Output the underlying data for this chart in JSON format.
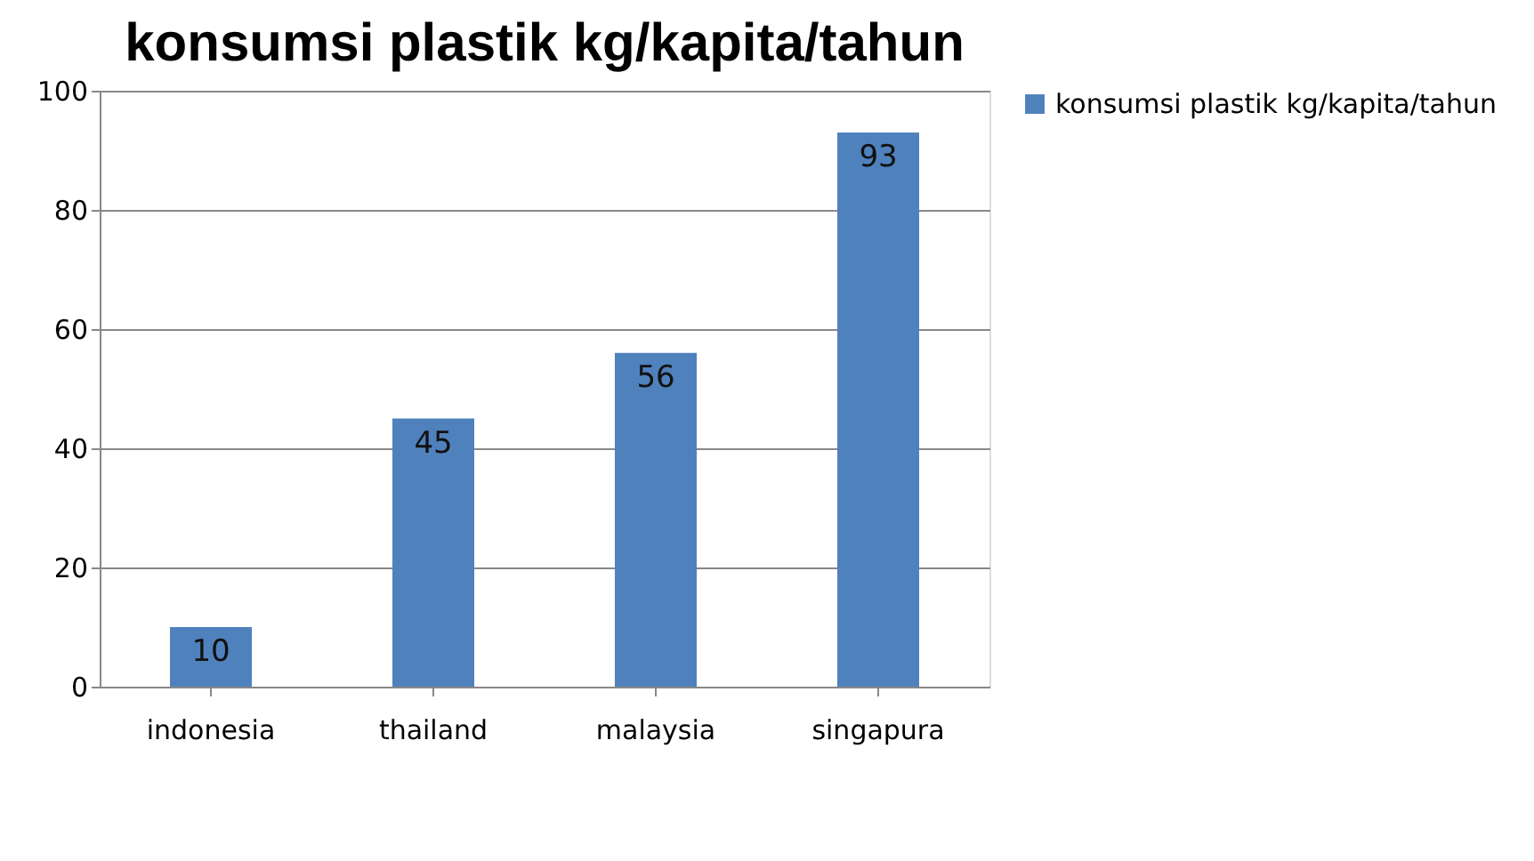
{
  "chart_data": {
    "type": "bar",
    "title": "konsumsi plastik kg/kapita/tahun",
    "categories": [
      "indonesia",
      "thailand",
      "malaysia",
      "singapura"
    ],
    "series": [
      {
        "name": "konsumsi plastik kg/kapita/tahun",
        "color": "#4f81bd",
        "values": [
          10,
          45,
          56,
          93
        ]
      }
    ],
    "ylim": [
      0,
      100
    ],
    "yticks": [
      0,
      20,
      40,
      60,
      80,
      100
    ],
    "grid": "y",
    "legend": "right",
    "data_labels": true
  }
}
